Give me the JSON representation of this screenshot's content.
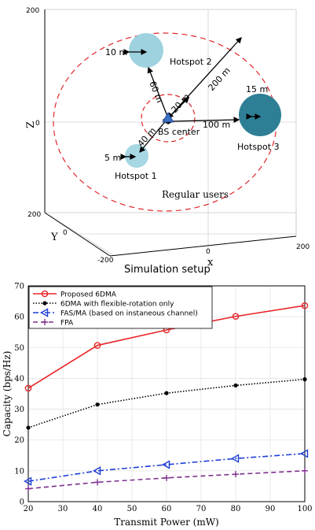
{
  "figure": {
    "caption": "Simulation setup"
  },
  "scene": {
    "axes": {
      "z_label": "Z",
      "y_label": "Y",
      "x_label": "x",
      "z_ticks": [
        "200",
        "0",
        "-200"
      ],
      "y_ticks": [
        "200",
        "0",
        "-200"
      ],
      "x_ticks": [
        "0",
        "200"
      ]
    },
    "bs_label": "BS center",
    "regular_users_label": "Regular users",
    "hotspots": [
      {
        "name": "Hotspot 1",
        "radius_label": "5 m",
        "distance_label": "40 m",
        "color": "#a7d7e3"
      },
      {
        "name": "Hotspot 2",
        "radius_label": "10 m",
        "distance_label": "60 m",
        "color": "#9ed2df"
      },
      {
        "name": "Hotspot 3",
        "radius_label": "15 m",
        "distance_label": "100 m",
        "color": "#2e7f95"
      }
    ],
    "inner_radius_label": "20 m",
    "outer_radius_label": "200 m",
    "bs_color": "#3a6fc4",
    "ring_color": "#e0262b"
  },
  "chart_data": {
    "type": "line",
    "title": "",
    "xlabel": "Transmit Power (mW)",
    "ylabel": "Capacity (bps/Hz)",
    "xlim": [
      20,
      100
    ],
    "ylim": [
      0,
      70
    ],
    "x_ticks": [
      "20",
      "30",
      "40",
      "50",
      "60",
      "70",
      "80",
      "90",
      "100"
    ],
    "y_ticks": [
      "0",
      "10",
      "20",
      "30",
      "40",
      "50",
      "60",
      "70"
    ],
    "grid": true,
    "legend_position": "top-left",
    "x": [
      20,
      40,
      60,
      80,
      100
    ],
    "series": [
      {
        "name": "Proposed 6DMA",
        "values": [
          36.8,
          50.7,
          55.7,
          60.1,
          63.6
        ],
        "color": "#e8262a",
        "marker": "circle",
        "dash": "solid"
      },
      {
        "name": "6DMA with flexible-rotation only",
        "values": [
          24.0,
          31.5,
          35.2,
          37.7,
          39.7
        ],
        "color": "#000000",
        "marker": "dot",
        "dash": "dotted"
      },
      {
        "name": "FAS/MA (based on instaneous channel)",
        "values": [
          6.6,
          10.0,
          12.0,
          14.0,
          15.6
        ],
        "color": "#1e3fd6",
        "marker": "triangle-left",
        "dash": "dashdot"
      },
      {
        "name": "FPA",
        "values": [
          4.2,
          6.3,
          7.7,
          8.9,
          10.0
        ],
        "color": "#7e2f8e",
        "marker": "plus",
        "dash": "dashed"
      }
    ]
  }
}
